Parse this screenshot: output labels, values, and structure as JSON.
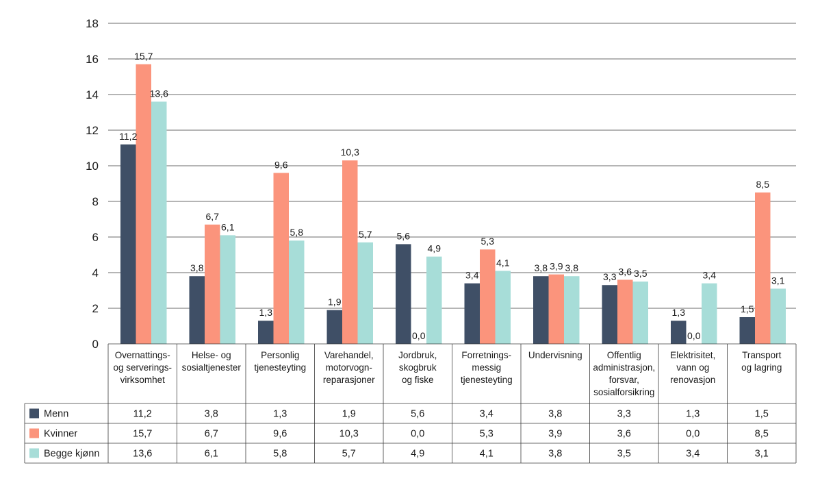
{
  "chart_data": {
    "type": "bar",
    "categories": [
      [
        "Overnattings-",
        "og serverings-",
        "virksomhet"
      ],
      [
        "Helse- og",
        "sosialtjenester"
      ],
      [
        "Personlig",
        "tjenesteyting"
      ],
      [
        "Varehandel,",
        "motorvogn-",
        "reparasjoner"
      ],
      [
        "Jordbruk,",
        "skogbruk",
        "og fiske"
      ],
      [
        "Forretnings-",
        "messig",
        "tjenesteyting"
      ],
      [
        "Undervisning"
      ],
      [
        "Offentlig",
        "administrasjon,",
        "forsvar,",
        "sosialforsikring"
      ],
      [
        "Elektrisitet,",
        "vann og",
        "renovasjon"
      ],
      [
        "Transport",
        "og lagring"
      ]
    ],
    "series": [
      {
        "name": "Menn",
        "color": "#3f4f66",
        "values": [
          11.2,
          3.8,
          1.3,
          1.9,
          5.6,
          3.4,
          3.8,
          3.3,
          1.3,
          1.5
        ],
        "labels": [
          "11,2",
          "3,8",
          "1,3",
          "1,9",
          "5,6",
          "3,4",
          "3,8",
          "3,3",
          "1,3",
          "1,5"
        ]
      },
      {
        "name": "Kvinner",
        "color": "#fb947c",
        "values": [
          15.7,
          6.7,
          9.6,
          10.3,
          0.0,
          5.3,
          3.9,
          3.6,
          0.0,
          8.5
        ],
        "labels": [
          "15,7",
          "6,7",
          "9,6",
          "10,3",
          "0,0",
          "5,3",
          "3,9",
          "3,6",
          "0,0",
          "8,5"
        ]
      },
      {
        "name": "Begge kjønn",
        "color": "#a7ddd8",
        "values": [
          13.6,
          6.1,
          5.8,
          5.7,
          4.9,
          4.1,
          3.8,
          3.5,
          3.4,
          3.1
        ],
        "labels": [
          "13,6",
          "6,1",
          "5,8",
          "5,7",
          "4,9",
          "4,1",
          "3,8",
          "3,5",
          "3,4",
          "3,1"
        ]
      }
    ],
    "y_ticks": [
      "0",
      "2",
      "4",
      "6",
      "8",
      "10",
      "12",
      "14",
      "16",
      "18"
    ],
    "ylim": [
      0,
      18
    ],
    "grid": true,
    "legend": "table-below",
    "title": "",
    "xlabel": "",
    "ylabel": ""
  }
}
